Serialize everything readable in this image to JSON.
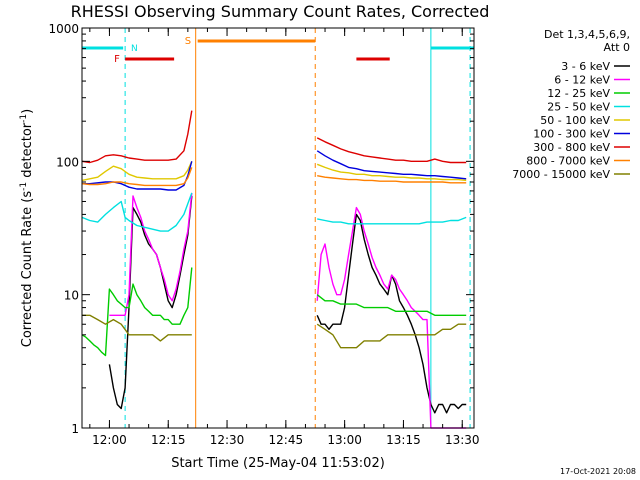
{
  "chart_data": {
    "type": "line",
    "title": "RHESSI Observing Summary Count Rates, Corrected",
    "xlabel": "Start Time (25-May-04 11:53:02)",
    "ylabel": "Corrected Count Rate (s",
    "ylabel_sup1": "-1",
    "ylabel_mid": " detector",
    "ylabel_sup2": "-1",
    "ylabel_end": ")",
    "yscale": "log",
    "ylim": [
      1,
      1000
    ],
    "xlim_minutes": [
      0,
      100
    ],
    "x_ticks": [
      {
        "minutes": 7,
        "label": "12:00"
      },
      {
        "minutes": 22,
        "label": "12:15"
      },
      {
        "minutes": 37,
        "label": "12:30"
      },
      {
        "minutes": 52,
        "label": "12:45"
      },
      {
        "minutes": 67,
        "label": "13:00"
      },
      {
        "minutes": 82,
        "label": "13:15"
      },
      {
        "minutes": 97,
        "label": "13:30"
      }
    ],
    "y_ticks": [
      {
        "value": 1,
        "label": "1"
      },
      {
        "value": 10,
        "label": "10"
      },
      {
        "value": 100,
        "label": "100"
      },
      {
        "value": 1000,
        "label": "1000"
      }
    ],
    "legend_header": [
      "Det 1,3,4,5,6,9,",
      "Att 0"
    ],
    "footer_date": "17-Oct-2021 20:08",
    "gap_minutes": [
      29,
      60
    ],
    "markers": {
      "N_label": "N",
      "F_label": "F",
      "S_label": "S",
      "N_color": "#00e0e0",
      "F_color": "#dd0000",
      "S_color": "#ff8000",
      "night_bars": [
        [
          0,
          10.5
        ],
        [
          89,
          100
        ]
      ],
      "flare_bars": [
        [
          11,
          23.5
        ],
        [
          70,
          78.5
        ]
      ],
      "saa_bar": [
        29.5,
        59.5
      ],
      "vlines": [
        {
          "minutes": 11,
          "color": "#00e0e0",
          "dash": true
        },
        {
          "minutes": 29,
          "color": "#ff8000",
          "dash": false
        },
        {
          "minutes": 59.5,
          "color": "#ff8000",
          "dash": true
        },
        {
          "minutes": 89,
          "color": "#00e0e0",
          "dash": false
        },
        {
          "minutes": 99,
          "color": "#00e0e0",
          "dash": true
        }
      ]
    },
    "series": [
      {
        "name": "3 - 6 keV",
        "color": "#000000",
        "segments": [
          {
            "x": [
              7,
              8,
              9,
              10,
              11,
              12,
              13,
              14,
              15,
              16,
              17,
              18,
              19,
              20,
              21,
              22,
              23,
              24,
              25,
              26,
              27,
              28
            ],
            "y": [
              3,
              2,
              1.5,
              1.4,
              2,
              8,
              45,
              40,
              35,
              28,
              24,
              22,
              20,
              16,
              12,
              9,
              8,
              10,
              14,
              20,
              28,
              55
            ]
          },
          {
            "x": [
              60,
              61,
              62,
              63,
              64,
              65,
              66,
              67,
              68,
              69,
              70,
              71,
              72,
              73,
              74,
              75,
              76,
              77,
              78,
              79,
              80,
              81,
              82,
              83,
              84,
              85,
              86,
              87,
              88,
              89,
              90,
              91,
              92,
              93,
              94,
              95,
              96,
              97,
              98
            ],
            "y": [
              7,
              6,
              6,
              5.5,
              6,
              6,
              6,
              8,
              14,
              24,
              40,
              36,
              26,
              20,
              16,
              14,
              12,
              11,
              10,
              14,
              12,
              9,
              8,
              7,
              6,
              5,
              4,
              3,
              2,
              1.5,
              1.3,
              1.5,
              1.5,
              1.3,
              1.5,
              1.5,
              1.4,
              1.5,
              1.5
            ]
          }
        ]
      },
      {
        "name": "6 - 12 keV",
        "color": "#ff00ff",
        "segments": [
          {
            "x": [
              7,
              8,
              9,
              10,
              11,
              12,
              13,
              14,
              15,
              16,
              17,
              18,
              19,
              20,
              21,
              22,
              23,
              24,
              25,
              26,
              27,
              28
            ],
            "y": [
              7,
              7,
              7,
              7,
              7,
              10,
              55,
              45,
              38,
              30,
              26,
              22,
              20,
              16,
              13,
              10,
              9,
              11,
              15,
              22,
              30,
              58
            ]
          },
          {
            "x": [
              60,
              61,
              62,
              63,
              64,
              65,
              66,
              67,
              68,
              69,
              70,
              71,
              72,
              73,
              74,
              75,
              76,
              77,
              78,
              79,
              80,
              81,
              82,
              83,
              84,
              85,
              86,
              87,
              88,
              89,
              90,
              91,
              92,
              93,
              94,
              95,
              96,
              97,
              98
            ],
            "y": [
              9,
              20,
              24,
              16,
              12,
              10,
              10,
              13,
              20,
              30,
              45,
              40,
              30,
              24,
              19,
              16,
              14,
              12,
              11,
              14,
              13,
              11,
              10,
              9,
              8,
              7.5,
              7,
              6.5,
              6.5,
              1,
              1,
              1,
              1,
              1,
              1,
              1,
              1,
              1,
              1
            ]
          }
        ]
      },
      {
        "name": "12 - 25 keV",
        "color": "#00cc00",
        "segments": [
          {
            "x": [
              0,
              1,
              2,
              3,
              4,
              5,
              6,
              7,
              8,
              9,
              10,
              11,
              12,
              13,
              14,
              15,
              16,
              17,
              18,
              19,
              20,
              21,
              22,
              23,
              24,
              25,
              26,
              27,
              28
            ],
            "y": [
              5,
              4.8,
              4.5,
              4.2,
              4,
              3.7,
              3.5,
              11,
              10,
              9,
              8.5,
              8,
              8,
              12,
              10,
              9,
              8,
              7.5,
              7,
              7,
              7,
              6.5,
              6.5,
              6,
              6,
              6,
              7,
              8,
              16
            ]
          },
          {
            "x": [
              60,
              62,
              64,
              66,
              68,
              70,
              72,
              74,
              76,
              78,
              80,
              82,
              84,
              86,
              88,
              90,
              92,
              94,
              96,
              98
            ],
            "y": [
              10,
              9,
              9,
              8.5,
              8.5,
              8.5,
              8,
              8,
              8,
              8,
              7.5,
              7.5,
              7.5,
              7.5,
              7.5,
              7,
              7,
              7,
              7,
              7
            ]
          }
        ]
      },
      {
        "name": "25 - 50 keV",
        "color": "#00e0e0",
        "segments": [
          {
            "x": [
              0,
              2,
              4,
              6,
              8,
              10,
              11,
              12,
              14,
              16,
              18,
              20,
              22,
              24,
              26,
              27,
              28
            ],
            "y": [
              38,
              36,
              35,
              40,
              45,
              50,
              38,
              36,
              33,
              32,
              31,
              30,
              30,
              33,
              40,
              48,
              58
            ]
          },
          {
            "x": [
              60,
              62,
              64,
              66,
              68,
              70,
              72,
              74,
              76,
              78,
              80,
              82,
              84,
              86,
              88,
              90,
              92,
              94,
              96,
              98
            ],
            "y": [
              37,
              36,
              35,
              35,
              34,
              34,
              34,
              34,
              34,
              34,
              34,
              34,
              34,
              34,
              35,
              35,
              35,
              36,
              36,
              38
            ]
          }
        ]
      },
      {
        "name": "50 - 100 keV",
        "color": "#e0c800",
        "segments": [
          {
            "x": [
              0,
              2,
              4,
              6,
              8,
              10,
              12,
              14,
              16,
              18,
              20,
              22,
              24,
              26,
              27,
              28
            ],
            "y": [
              72,
              74,
              76,
              84,
              92,
              88,
              80,
              76,
              75,
              74,
              74,
              74,
              74,
              78,
              86,
              100
            ]
          },
          {
            "x": [
              60,
              62,
              64,
              66,
              68,
              70,
              72,
              74,
              76,
              78,
              80,
              82,
              84,
              86,
              88,
              90,
              92,
              94,
              96,
              98
            ],
            "y": [
              95,
              90,
              86,
              83,
              82,
              80,
              80,
              78,
              78,
              77,
              76,
              76,
              75,
              75,
              74,
              74,
              73,
              73,
              73,
              72
            ]
          }
        ]
      },
      {
        "name": "100 - 300 keV",
        "color": "#0000dd",
        "segments": [
          {
            "x": [
              0,
              2,
              4,
              6,
              8,
              10,
              12,
              14,
              16,
              18,
              20,
              22,
              24,
              26,
              27,
              28
            ],
            "y": [
              68,
              68,
              69,
              70,
              70,
              68,
              64,
              62,
              62,
              62,
              62,
              61,
              61,
              66,
              78,
              100
            ]
          },
          {
            "x": [
              60,
              62,
              64,
              66,
              68,
              70,
              72,
              74,
              76,
              78,
              80,
              82,
              84,
              86,
              88,
              90,
              92,
              94,
              96,
              98
            ],
            "y": [
              120,
              110,
              102,
              96,
              90,
              88,
              85,
              84,
              83,
              82,
              81,
              80,
              80,
              79,
              78,
              78,
              77,
              76,
              75,
              74
            ]
          }
        ]
      },
      {
        "name": "300 - 800 keV",
        "color": "#dd0000",
        "segments": [
          {
            "x": [
              0,
              2,
              4,
              6,
              8,
              10,
              12,
              14,
              16,
              18,
              20,
              22,
              24,
              26,
              27,
              28
            ],
            "y": [
              100,
              98,
              102,
              110,
              112,
              110,
              106,
              104,
              102,
              102,
              102,
              102,
              104,
              120,
              160,
              240
            ]
          },
          {
            "x": [
              60,
              62,
              64,
              66,
              68,
              70,
              72,
              74,
              76,
              78,
              80,
              82,
              84,
              86,
              88,
              90,
              92,
              94,
              96,
              98
            ],
            "y": [
              150,
              140,
              132,
              124,
              118,
              114,
              110,
              108,
              106,
              104,
              102,
              102,
              100,
              100,
              100,
              104,
              100,
              98,
              98,
              98
            ]
          }
        ]
      },
      {
        "name": "800 - 7000 keV",
        "color": "#ff8000",
        "segments": [
          {
            "x": [
              0,
              2,
              4,
              6,
              8,
              10,
              12,
              14,
              16,
              18,
              20,
              22,
              24,
              26,
              27,
              28
            ],
            "y": [
              68,
              67,
              67,
              68,
              70,
              70,
              68,
              67,
              66,
              66,
              66,
              66,
              66,
              68,
              75,
              90
            ]
          },
          {
            "x": [
              60,
              62,
              64,
              66,
              68,
              70,
              72,
              74,
              76,
              78,
              80,
              82,
              84,
              86,
              88,
              90,
              92,
              94,
              96,
              98
            ],
            "y": [
              78,
              76,
              75,
              74,
              73,
              73,
              72,
              72,
              71,
              71,
              71,
              70,
              70,
              70,
              70,
              70,
              70,
              69,
              69,
              69
            ]
          }
        ]
      },
      {
        "name": "7000 - 15000 keV",
        "color": "#808000",
        "segments": [
          {
            "x": [
              0,
              2,
              4,
              6,
              8,
              10,
              12,
              14,
              16,
              18,
              20,
              22,
              24,
              26,
              27,
              28
            ],
            "y": [
              7,
              7,
              6.5,
              6,
              6.5,
              6,
              5,
              5,
              5,
              5,
              4.5,
              5,
              5,
              5,
              5,
              5
            ]
          },
          {
            "x": [
              60,
              62,
              64,
              66,
              68,
              70,
              72,
              74,
              76,
              78,
              80,
              82,
              84,
              86,
              88,
              90,
              92,
              94,
              96,
              98
            ],
            "y": [
              6,
              5.5,
              5,
              4,
              4,
              4,
              4.5,
              4.5,
              4.5,
              5,
              5,
              5,
              5,
              5,
              5,
              5,
              5.5,
              5.5,
              6,
              6
            ]
          }
        ]
      }
    ]
  }
}
